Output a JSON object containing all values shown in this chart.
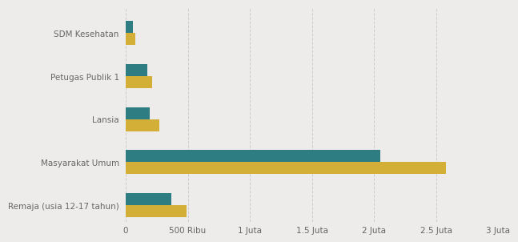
{
  "categories": [
    "SDM Kesehatan",
    "Petugas Publik 1",
    "Lansia",
    "Masyarakat Umum",
    "Remaja (usia 12-17 tahun)"
  ],
  "target_values": [
    75000,
    210000,
    270000,
    2580000,
    490000
  ],
  "realisasi_values": [
    60000,
    175000,
    195000,
    2050000,
    370000
  ],
  "color_target": "#D4AF37",
  "color_realisasi": "#2E7D82",
  "background_color": "#EDECEA",
  "plot_bg_color": "#EDECEA",
  "bar_height": 0.28,
  "xlim": [
    0,
    3000000
  ],
  "xticks": [
    0,
    500000,
    1000000,
    1500000,
    2000000,
    2500000,
    3000000
  ],
  "xtick_labels": [
    "0",
    "500 Ribu",
    "1 Juta",
    "1.5 Juta",
    "2 Juta",
    "2.5 Juta",
    "3 Juta"
  ],
  "grid_color": "#cccccc",
  "font_color": "#666666",
  "label_fontsize": 7.5,
  "tick_fontsize": 7.5
}
